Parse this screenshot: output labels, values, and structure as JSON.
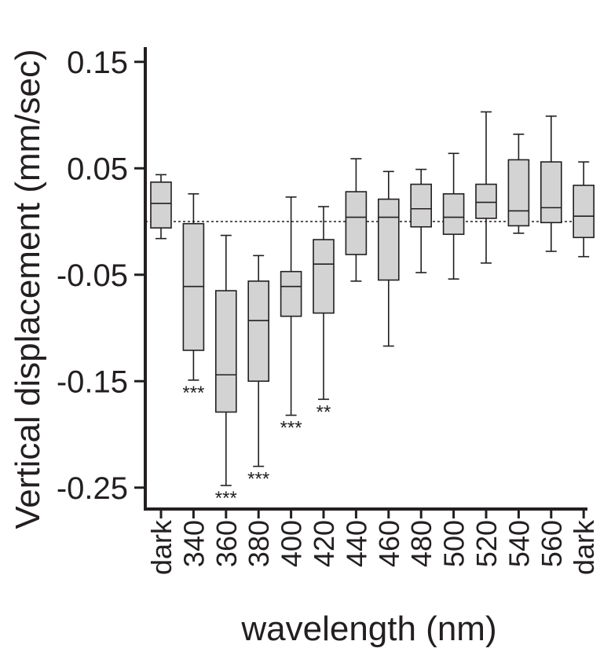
{
  "chart_data": {
    "type": "box",
    "xlabel": "wavelength (nm)",
    "ylabel": "Vertical displacement (mm/sec)",
    "ylim": [
      -0.27,
      0.15
    ],
    "yticks": [
      0.15,
      0.05,
      -0.05,
      -0.15,
      -0.25
    ],
    "ytick_labels": [
      "0.15",
      "0.05",
      "-0.05",
      "-0.15",
      "-0.25"
    ],
    "reference_line": 0,
    "colors": {
      "box_fill": "#d3d3d3",
      "stroke": "#231f20"
    },
    "categories": [
      "dark",
      "340",
      "360",
      "380",
      "400",
      "420",
      "440",
      "460",
      "480",
      "500",
      "520",
      "540",
      "560",
      "dark"
    ],
    "boxes": [
      {
        "min": -0.016,
        "q1": -0.006,
        "median": 0.017,
        "q3": 0.037,
        "max": 0.044,
        "sig": ""
      },
      {
        "min": -0.149,
        "q1": -0.121,
        "median": -0.061,
        "q3": -0.002,
        "max": 0.026,
        "sig": "***"
      },
      {
        "min": -0.248,
        "q1": -0.179,
        "median": -0.144,
        "q3": -0.065,
        "max": -0.013,
        "sig": "***"
      },
      {
        "min": -0.23,
        "q1": -0.15,
        "median": -0.093,
        "q3": -0.056,
        "max": -0.032,
        "sig": "***"
      },
      {
        "min": -0.182,
        "q1": -0.089,
        "median": -0.061,
        "q3": -0.047,
        "max": 0.023,
        "sig": "***"
      },
      {
        "min": -0.167,
        "q1": -0.086,
        "median": -0.04,
        "q3": -0.017,
        "max": 0.014,
        "sig": "**"
      },
      {
        "min": -0.056,
        "q1": -0.031,
        "median": 0.004,
        "q3": 0.028,
        "max": 0.059,
        "sig": ""
      },
      {
        "min": -0.117,
        "q1": -0.055,
        "median": 0.004,
        "q3": 0.021,
        "max": 0.047,
        "sig": ""
      },
      {
        "min": -0.048,
        "q1": -0.005,
        "median": 0.012,
        "q3": 0.035,
        "max": 0.049,
        "sig": ""
      },
      {
        "min": -0.054,
        "q1": -0.012,
        "median": 0.004,
        "q3": 0.026,
        "max": 0.064,
        "sig": ""
      },
      {
        "min": -0.039,
        "q1": 0.003,
        "median": 0.018,
        "q3": 0.035,
        "max": 0.103,
        "sig": ""
      },
      {
        "min": -0.011,
        "q1": -0.004,
        "median": 0.01,
        "q3": 0.058,
        "max": 0.082,
        "sig": ""
      },
      {
        "min": -0.028,
        "q1": -0.001,
        "median": 0.013,
        "q3": 0.056,
        "max": 0.099,
        "sig": ""
      },
      {
        "min": -0.033,
        "q1": -0.015,
        "median": 0.005,
        "q3": 0.034,
        "max": 0.056,
        "sig": ""
      }
    ]
  }
}
